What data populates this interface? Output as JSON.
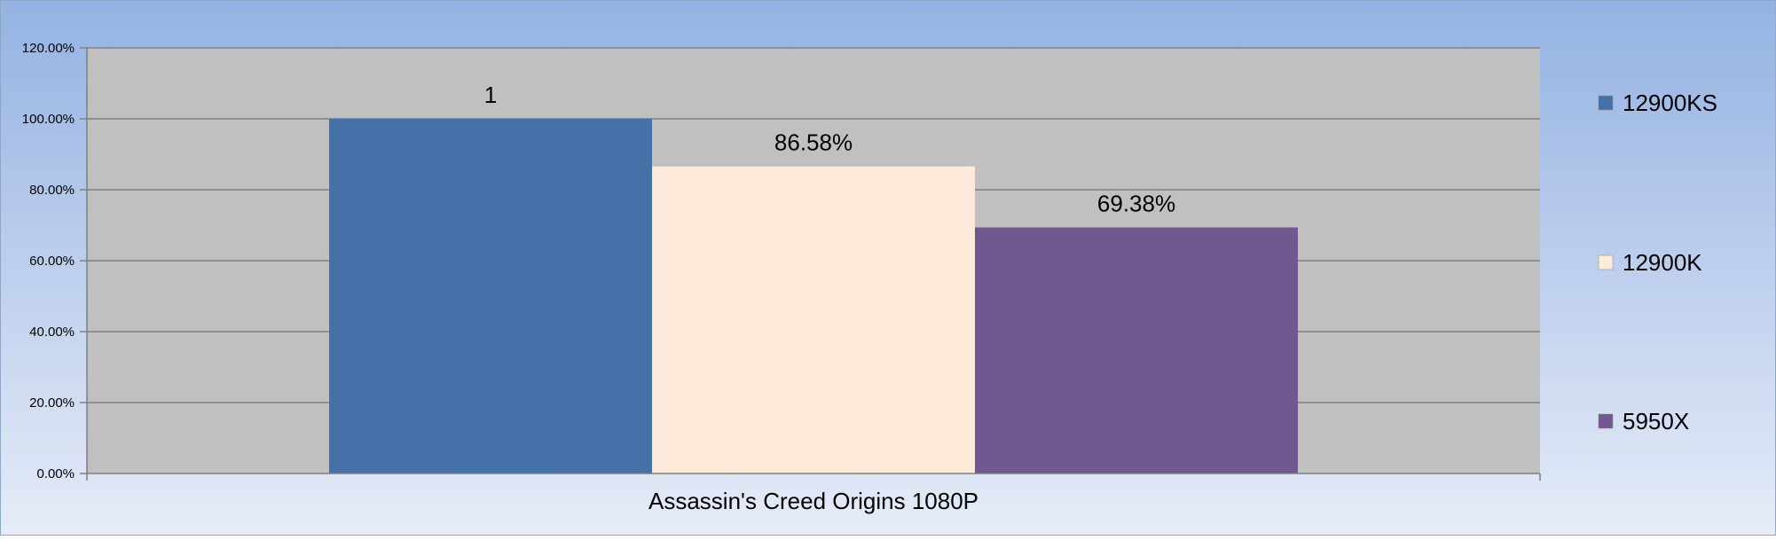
{
  "chart_data": {
    "type": "bar",
    "categories": [
      "Assassin's Creed Origins 1080P"
    ],
    "series": [
      {
        "name": "12900KS",
        "values": [
          1.0
        ],
        "data_label": "1",
        "color": "#4472A8"
      },
      {
        "name": "12900K",
        "values": [
          0.8658
        ],
        "data_label": "86.58%",
        "color": "#FEEADB"
      },
      {
        "name": "5950X",
        "values": [
          0.6938
        ],
        "data_label": "69.38%",
        "color": "#725890"
      }
    ],
    "yticks": [
      "0.00%",
      "20.00%",
      "40.00%",
      "60.00%",
      "80.00%",
      "100.00%",
      "120.00%"
    ],
    "ylim": [
      0,
      1.2
    ],
    "grid": true,
    "legend": "right",
    "plot_background": "#C0C0C0",
    "chart_background": "#9AB6E2"
  }
}
